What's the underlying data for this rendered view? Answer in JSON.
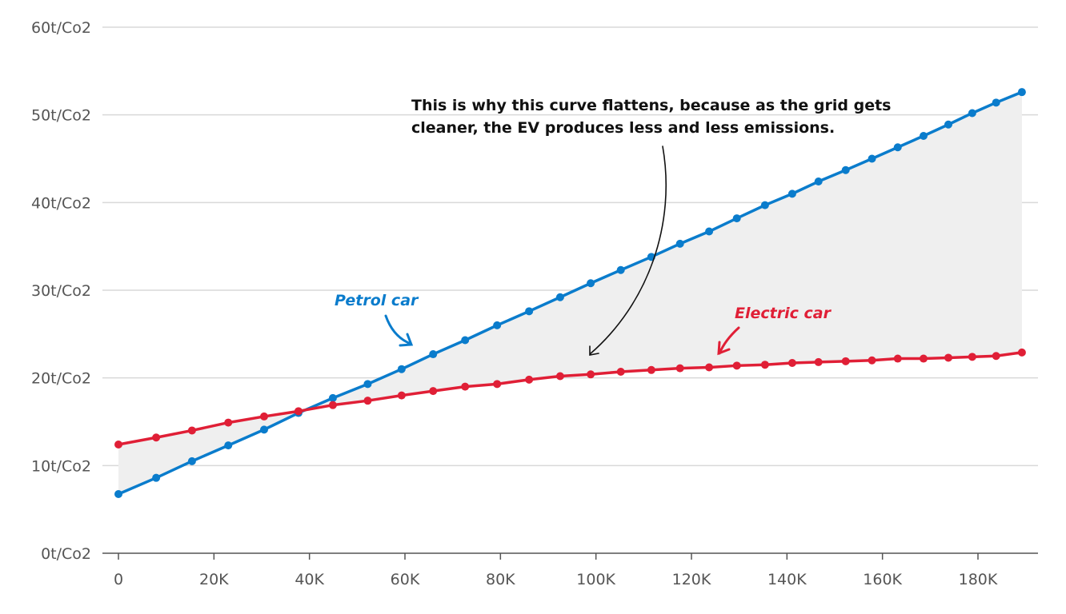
{
  "chart_data": {
    "type": "line",
    "title": "",
    "xlabel": "",
    "ylabel": "",
    "xlim": [
      0,
      189
    ],
    "ylim": [
      0,
      60
    ],
    "grid": true,
    "x_unit": "K km",
    "x_ticks": [
      0,
      20,
      40,
      60,
      80,
      100,
      120,
      140,
      160,
      180
    ],
    "x_tick_labels": [
      "0",
      "20K",
      "40K",
      "60K",
      "80K",
      "100K",
      "120K",
      "140K",
      "160K",
      "180K"
    ],
    "y_ticks": [
      0,
      10,
      20,
      30,
      40,
      50,
      60
    ],
    "y_tick_labels": [
      "0t/Co2",
      "10t/Co2",
      "20t/Co2",
      "30t/Co2",
      "40t/Co2",
      "50t/Co2",
      "60t/Co2"
    ],
    "x": [
      0,
      7.9,
      15.4,
      23.0,
      30.5,
      37.7,
      44.9,
      52.2,
      59.3,
      65.9,
      72.6,
      79.3,
      86.0,
      92.5,
      98.9,
      105.2,
      111.6,
      117.6,
      123.7,
      129.5,
      135.4,
      141.1,
      146.6,
      152.3,
      157.8,
      163.2,
      168.6,
      173.8,
      178.8,
      183.8,
      189.2
    ],
    "series": [
      {
        "name": "Petrol car",
        "color": "#0a7ccc",
        "values": [
          6.75,
          8.6,
          10.5,
          12.3,
          14.1,
          16.0,
          17.7,
          19.3,
          21.0,
          22.7,
          24.3,
          26.0,
          27.6,
          29.2,
          30.8,
          32.3,
          33.8,
          35.3,
          36.7,
          38.2,
          39.7,
          41.0,
          42.4,
          43.7,
          45.0,
          46.3,
          47.6,
          48.9,
          50.2,
          51.4,
          52.6
        ]
      },
      {
        "name": "Electric car",
        "color": "#e01f36",
        "values": [
          12.4,
          13.2,
          14.0,
          14.9,
          15.6,
          16.2,
          16.9,
          17.4,
          18.0,
          18.5,
          19.0,
          19.3,
          19.8,
          20.2,
          20.4,
          20.7,
          20.9,
          21.1,
          21.2,
          21.4,
          21.5,
          21.7,
          21.8,
          21.9,
          22.0,
          22.2,
          22.2,
          22.3,
          22.4,
          22.5,
          22.9
        ]
      }
    ],
    "annotations": [
      {
        "text": "Petrol car",
        "series": "Petrol car"
      },
      {
        "text": "Electric car",
        "series": "Electric car"
      },
      {
        "lines": [
          "This is why this curve flattens, because as the grid gets",
          "cleaner, the EV produces less and less emissions."
        ]
      }
    ],
    "fill_between": {
      "color": "#efefef"
    }
  }
}
